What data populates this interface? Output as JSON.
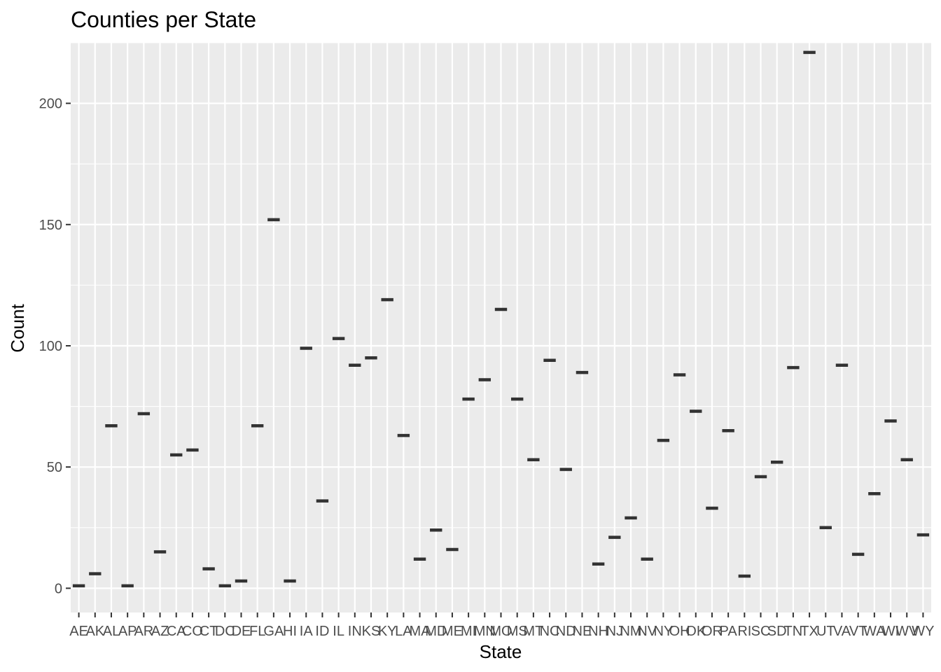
{
  "chart_data": {
    "type": "boxplot",
    "title": "Counties per State",
    "xlabel": "State",
    "ylabel": "Count",
    "ylim": [
      -10,
      225
    ],
    "y_ticks": [
      0,
      50,
      100,
      150,
      200
    ],
    "grid": true,
    "legend": "none",
    "colors": {
      "panel": "#ebebeb",
      "grid": "#ffffff",
      "mark": "#333333",
      "tick_text": "#4d4d4d"
    },
    "categories": [
      "AE",
      "AK",
      "AL",
      "AP",
      "AR",
      "AZ",
      "CA",
      "CO",
      "CT",
      "DC",
      "DE",
      "FL",
      "GA",
      "HI",
      "IA",
      "ID",
      "IL",
      "IN",
      "KS",
      "KY",
      "LA",
      "MA",
      "MD",
      "ME",
      "MI",
      "MN",
      "MO",
      "MS",
      "MT",
      "NC",
      "ND",
      "NE",
      "NH",
      "NJ",
      "NM",
      "NV",
      "NY",
      "OH",
      "OK",
      "OR",
      "PA",
      "RI",
      "SC",
      "SD",
      "TN",
      "TX",
      "UT",
      "VA",
      "VT",
      "WA",
      "WI",
      "WV",
      "WY"
    ],
    "values": [
      1,
      6,
      67,
      1,
      72,
      15,
      55,
      57,
      8,
      1,
      3,
      67,
      152,
      3,
      99,
      36,
      103,
      92,
      95,
      119,
      63,
      12,
      24,
      16,
      78,
      86,
      115,
      78,
      53,
      94,
      49,
      89,
      10,
      21,
      29,
      12,
      61,
      88,
      73,
      33,
      65,
      5,
      46,
      52,
      91,
      221,
      25,
      92,
      14,
      39,
      69,
      53,
      22
    ]
  }
}
